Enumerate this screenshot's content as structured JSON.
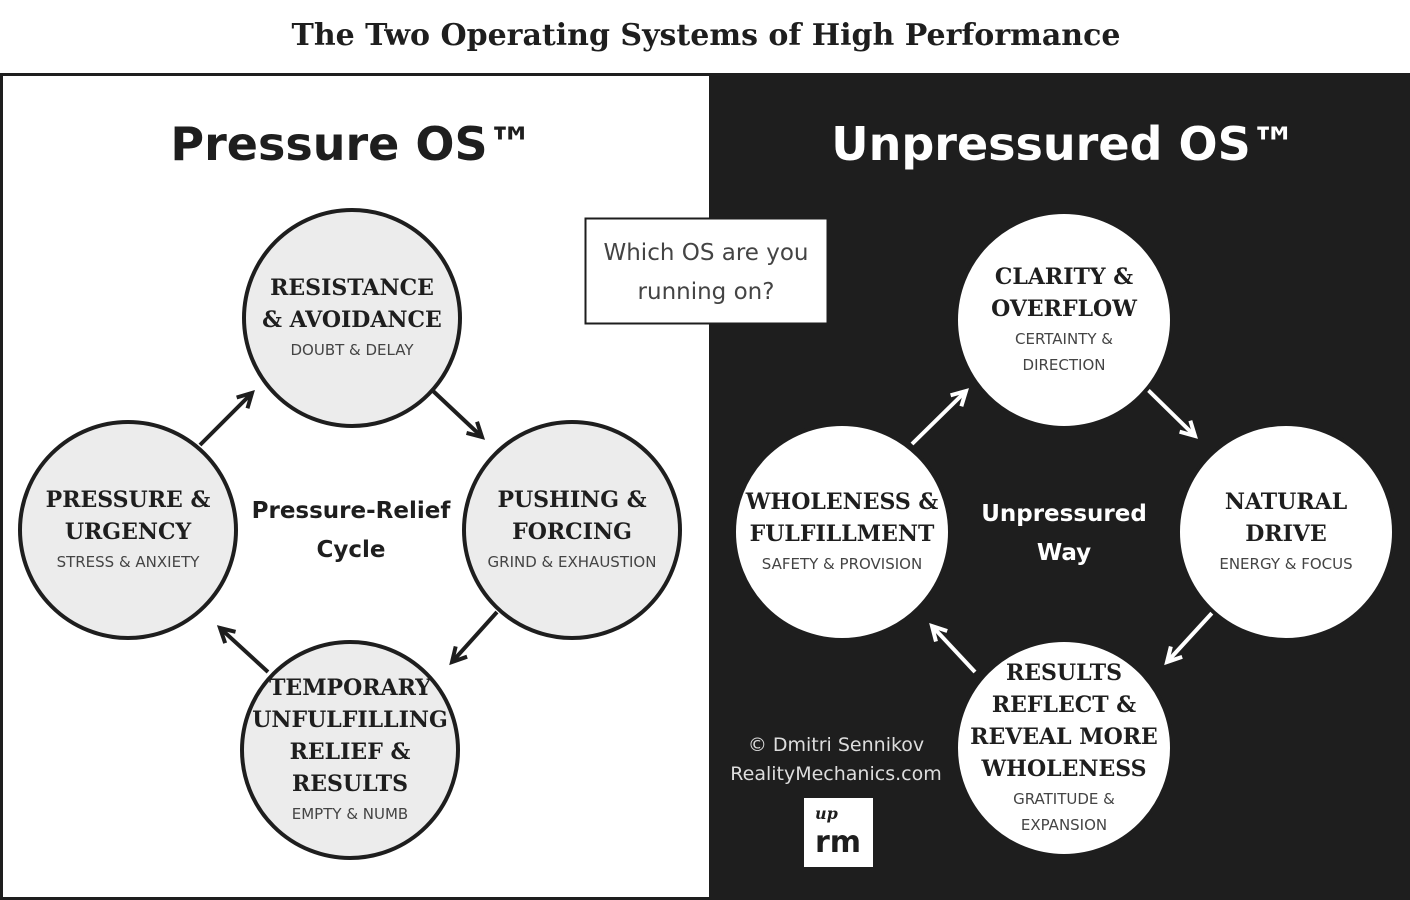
{
  "title": "The Two Operating Systems of High Performance",
  "question": {
    "line1": "Which OS are you",
    "line2": "running on?"
  },
  "left": {
    "heading": "Pressure OS™",
    "center": {
      "line1": "Pressure-Relief",
      "line2": "Cycle"
    },
    "circles": [
      {
        "title": [
          "RESISTANCE",
          "& AVOIDANCE"
        ],
        "sub": [
          "DOUBT & DELAY"
        ]
      },
      {
        "title": [
          "PUSHING &",
          "FORCING"
        ],
        "sub": [
          "GRIND & EXHAUSTION"
        ]
      },
      {
        "title": [
          "TEMPORARY",
          "UNFULFILLING",
          "RELIEF &",
          "RESULTS"
        ],
        "sub": [
          "EMPTY & NUMB"
        ]
      },
      {
        "title": [
          "PRESSURE &",
          "URGENCY"
        ],
        "sub": [
          "STRESS & ANXIETY"
        ]
      }
    ]
  },
  "right": {
    "heading": "Unpressured OS™",
    "center": {
      "line1": "Unpressured",
      "line2": "Way"
    },
    "circles": [
      {
        "title": [
          "CLARITY &",
          "OVERFLOW"
        ],
        "sub": [
          "CERTAINTY &",
          "DIRECTION"
        ]
      },
      {
        "title": [
          "NATURAL",
          "DRIVE"
        ],
        "sub": [
          "ENERGY & FOCUS"
        ]
      },
      {
        "title": [
          "RESULTS",
          "REFLECT &",
          "REVEAL MORE",
          "WHOLENESS"
        ],
        "sub": [
          "GRATITUDE &",
          "EXPANSION"
        ]
      },
      {
        "title": [
          "WHOLENESS &",
          "FULFILLMENT"
        ],
        "sub": [
          "SAFETY & PROVISION"
        ]
      }
    ]
  },
  "credit": {
    "line1": "© Dmitri Sennikov",
    "line2": "RealityMechanics.com",
    "logo": "rm"
  },
  "colors": {
    "dark": "#1e1e1e",
    "circle_left": "#ececec",
    "circle_right": "#ffffff"
  }
}
